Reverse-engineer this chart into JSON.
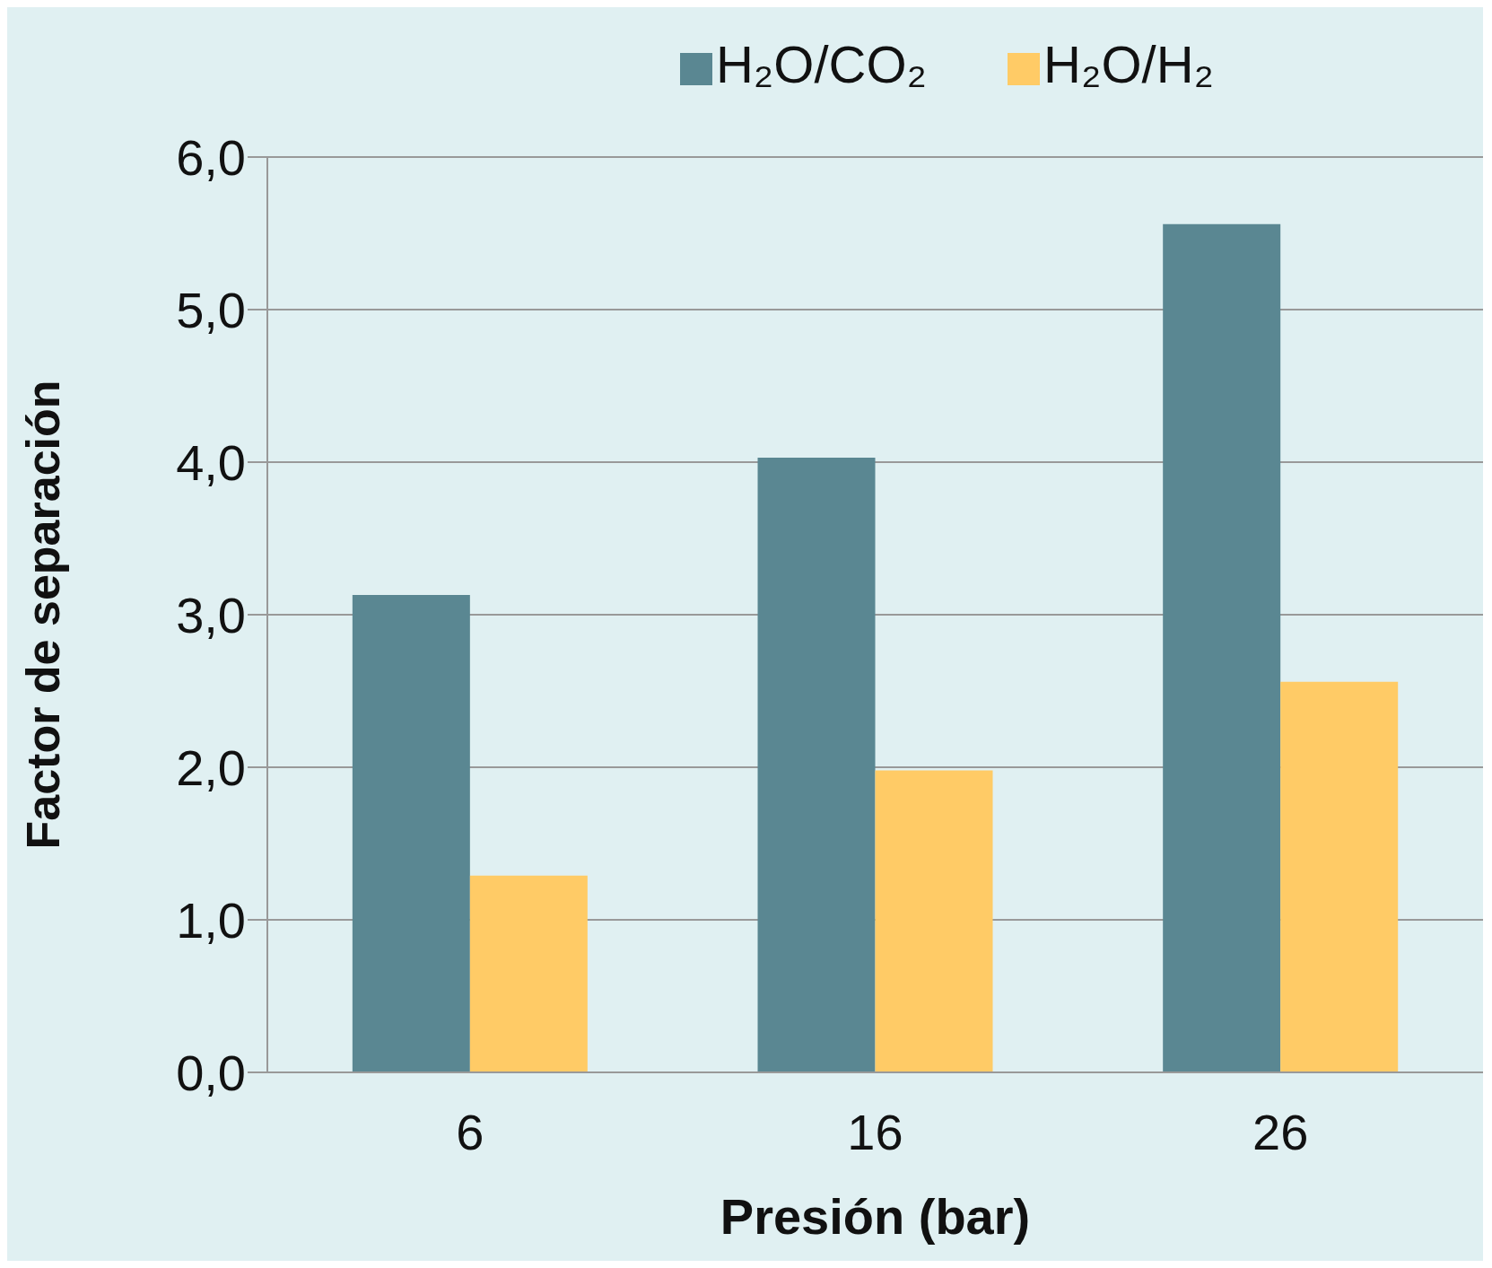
{
  "chart_data": {
    "type": "bar",
    "xlabel": "Presión (bar)",
    "ylabel": "Factor de separación",
    "categories": [
      "6",
      "16",
      "26"
    ],
    "series": [
      {
        "name": "H₂O/CO₂",
        "color": "#5a8792",
        "values": [
          3.13,
          4.03,
          5.56
        ]
      },
      {
        "name": "H₂O/H₂",
        "color": "#ffcb66",
        "values": [
          1.29,
          1.98,
          2.56
        ]
      }
    ],
    "ylim": [
      0,
      6
    ],
    "yticks": [
      {
        "value": 0,
        "label": "0,0"
      },
      {
        "value": 1,
        "label": "1,0"
      },
      {
        "value": 2,
        "label": "2,0"
      },
      {
        "value": 3,
        "label": "3,0"
      },
      {
        "value": 4,
        "label": "4,0"
      },
      {
        "value": 5,
        "label": "5,0"
      },
      {
        "value": 6,
        "label": "6,0"
      }
    ],
    "grid": "y",
    "legend": "top"
  }
}
